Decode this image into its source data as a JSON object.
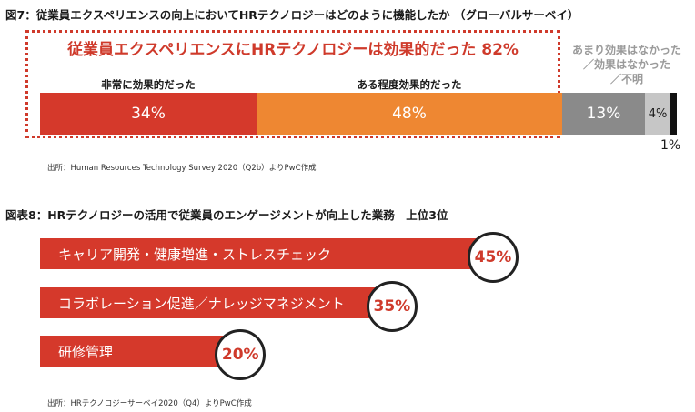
{
  "fig7": {
    "title": "図7：従業員エクスペリエンスの向上においてHRテクノロジーはどのように機能したか （グローバルサーベイ）",
    "highlight": "従業員エクスペリエンスにHRテクノロジーは効果的だった 82%",
    "other_label_lines": [
      "あまり効果はなかった",
      "／効果はなかった",
      "／不明"
    ],
    "source": "出所：Human Resources Technology Survey 2020（Q2b）よりPwC作成"
  },
  "fig8": {
    "title": "図表8：HRテクノロジーの活用で従業員のエンゲージメントが向上した業務　上位3位",
    "source": "出所：HRテクノロジーサーベイ2020（Q4）よりPwC作成"
  },
  "chart_data": [
    {
      "type": "bar",
      "orientation": "horizontal-stacked",
      "title": "図7：従業員エクスペリエンスの向上においてHRテクノロジーはどのように機能したか （グローバルサーベイ）",
      "series": [
        {
          "name": "非常に効果的だった",
          "value": 34,
          "label": "34%",
          "color": "#d5392b"
        },
        {
          "name": "ある程度効果的だった",
          "value": 48,
          "label": "48%",
          "color": "#ee8732"
        },
        {
          "name": "",
          "value": 13,
          "label": "13%",
          "color": "#8a8a8a"
        },
        {
          "name": "",
          "value": 4,
          "label": "4%",
          "color": "#c6c6c6"
        },
        {
          "name": "",
          "value": 1,
          "label": "1%",
          "color": "#111111"
        }
      ],
      "xlim": [
        0,
        100
      ],
      "annotation": "従業員エクスペリエンスにHRテクノロジーは効果的だった 82%"
    },
    {
      "type": "bar",
      "orientation": "horizontal",
      "title": "図表8：HRテクノロジーの活用で従業員のエンゲージメントが向上した業務　上位3位",
      "categories": [
        "キャリア開発・健康増進・ストレスチェック",
        "コラボレーション促進／ナレッジマネジメント",
        "研修管理"
      ],
      "values": [
        45,
        35,
        20
      ],
      "labels": [
        "45%",
        "35%",
        "20%"
      ],
      "color": "#d5392b",
      "xlim": [
        0,
        45
      ]
    }
  ]
}
